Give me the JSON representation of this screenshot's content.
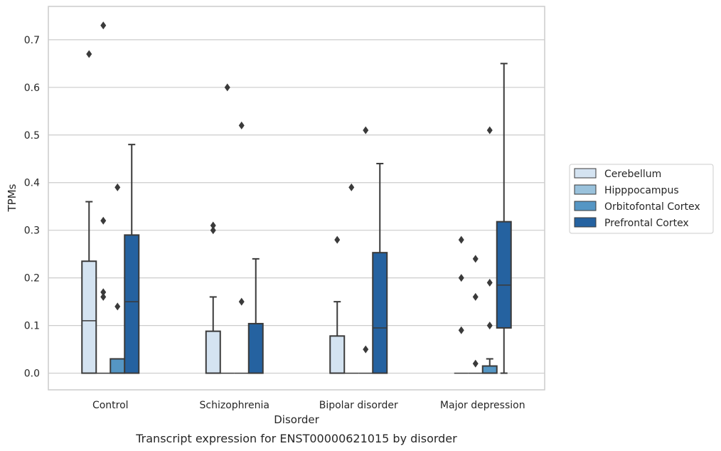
{
  "chart_data": {
    "type": "box",
    "title": "",
    "caption": "Transcript expression for ENST00000621015 by disorder",
    "xlabel": "Disorder",
    "ylabel": "TPMs",
    "ylim": [
      -0.035,
      0.77
    ],
    "yticks": [
      0.0,
      0.1,
      0.2,
      0.3,
      0.4,
      0.5,
      0.6,
      0.7
    ],
    "ytick_labels": [
      "0.0",
      "0.1",
      "0.2",
      "0.3",
      "0.4",
      "0.5",
      "0.6",
      "0.7"
    ],
    "grid": "horizontal",
    "legend_position": "right",
    "categories": [
      "Control",
      "Schizophrenia",
      "Bipolar disorder",
      "Major depression"
    ],
    "series": [
      {
        "name": "Cerebellum",
        "color": "#d4e3f1",
        "boxes": [
          {
            "whisker_low": 0.0,
            "q1": 0.0,
            "median": 0.11,
            "q3": 0.235,
            "whisker_high": 0.36,
            "outliers": [
              0.67
            ]
          },
          {
            "whisker_low": 0.0,
            "q1": 0.0,
            "median": 0.0,
            "q3": 0.088,
            "whisker_high": 0.16,
            "outliers": [
              0.3,
              0.31
            ]
          },
          {
            "whisker_low": 0.0,
            "q1": 0.0,
            "median": 0.0,
            "q3": 0.078,
            "whisker_high": 0.15,
            "outliers": [
              0.28
            ]
          },
          {
            "whisker_low": 0.0,
            "q1": 0.0,
            "median": 0.0,
            "q3": 0.0,
            "whisker_high": 0.0,
            "outliers": [
              0.09,
              0.2,
              0.28
            ]
          }
        ]
      },
      {
        "name": "Hipppocampus",
        "color": "#9ac2dc",
        "boxes": [
          {
            "whisker_low": 0.0,
            "q1": 0.0,
            "median": 0.0,
            "q3": 0.0,
            "whisker_high": 0.0,
            "outliers": [
              0.16,
              0.17,
              0.32,
              0.73
            ]
          },
          {
            "whisker_low": 0.0,
            "q1": 0.0,
            "median": 0.0,
            "q3": 0.0,
            "whisker_high": 0.0,
            "outliers": [
              0.6
            ]
          },
          {
            "whisker_low": 0.0,
            "q1": 0.0,
            "median": 0.0,
            "q3": 0.0,
            "whisker_high": 0.0,
            "outliers": [
              0.39
            ]
          },
          {
            "whisker_low": 0.0,
            "q1": 0.0,
            "median": 0.0,
            "q3": 0.0,
            "whisker_high": 0.0,
            "outliers": [
              0.02,
              0.16,
              0.24
            ]
          }
        ]
      },
      {
        "name": "Orbitofontal Cortex",
        "color": "#5596c4",
        "boxes": [
          {
            "whisker_low": 0.0,
            "q1": 0.0,
            "median": 0.0,
            "q3": 0.03,
            "whisker_high": 0.03,
            "outliers": [
              0.14,
              0.39
            ]
          },
          {
            "whisker_low": 0.0,
            "q1": 0.0,
            "median": 0.0,
            "q3": 0.0,
            "whisker_high": 0.0,
            "outliers": [
              0.15,
              0.52
            ]
          },
          {
            "whisker_low": 0.0,
            "q1": 0.0,
            "median": 0.0,
            "q3": 0.0,
            "whisker_high": 0.0,
            "outliers": [
              0.05,
              0.51
            ]
          },
          {
            "whisker_low": 0.0,
            "q1": 0.0,
            "median": 0.0,
            "q3": 0.015,
            "whisker_high": 0.03,
            "outliers": [
              0.1,
              0.19,
              0.51
            ]
          }
        ]
      },
      {
        "name": "Prefrontal Cortex",
        "color": "#2562a0",
        "boxes": [
          {
            "whisker_low": 0.0,
            "q1": 0.0,
            "median": 0.15,
            "q3": 0.29,
            "whisker_high": 0.48,
            "outliers": []
          },
          {
            "whisker_low": 0.0,
            "q1": 0.0,
            "median": 0.0,
            "q3": 0.104,
            "whisker_high": 0.24,
            "outliers": []
          },
          {
            "whisker_low": 0.0,
            "q1": 0.0,
            "median": 0.095,
            "q3": 0.253,
            "whisker_high": 0.44,
            "outliers": []
          },
          {
            "whisker_low": 0.0,
            "q1": 0.095,
            "median": 0.185,
            "q3": 0.318,
            "whisker_high": 0.65,
            "outliers": []
          }
        ]
      }
    ]
  }
}
